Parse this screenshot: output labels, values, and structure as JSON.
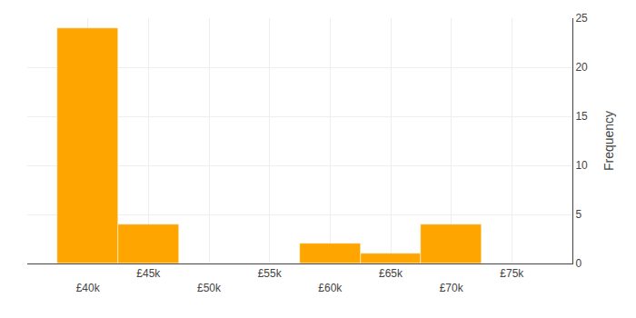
{
  "chart_data": {
    "type": "histogram",
    "bins": [
      37500,
      42500,
      47500,
      52500,
      57500,
      62500,
      67500,
      72500,
      77500
    ],
    "values": [
      24,
      4,
      0,
      0,
      2,
      1,
      4,
      0
    ],
    "color": "#FFA500",
    "ylabel": "Frequency",
    "xlim": [
      35000,
      80000
    ],
    "xticks": [
      {
        "value": 40000,
        "label": "£40k"
      },
      {
        "value": 45000,
        "label": "£45k"
      },
      {
        "value": 50000,
        "label": "£50k"
      },
      {
        "value": 55000,
        "label": "£55k"
      },
      {
        "value": 60000,
        "label": "£60k"
      },
      {
        "value": 65000,
        "label": "£65k"
      },
      {
        "value": 70000,
        "label": "£70k"
      },
      {
        "value": 75000,
        "label": "£75k"
      }
    ],
    "ylim": [
      0,
      25
    ],
    "yticks": [
      0,
      5,
      10,
      15,
      20,
      25
    ],
    "grid": true
  }
}
